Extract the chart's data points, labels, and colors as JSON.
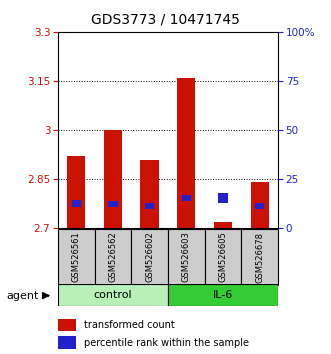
{
  "title": "GDS3773 / 10471745",
  "samples": [
    "GSM526561",
    "GSM526562",
    "GSM526602",
    "GSM526603",
    "GSM526605",
    "GSM526678"
  ],
  "red_values": [
    2.92,
    3.0,
    2.91,
    3.16,
    2.72,
    2.84
  ],
  "blue_values": [
    2.765,
    2.764,
    2.758,
    2.783,
    2.778,
    2.758
  ],
  "blue_heights": [
    0.02,
    0.02,
    0.02,
    0.02,
    0.03,
    0.02
  ],
  "y_min": 2.7,
  "y_max": 3.3,
  "y_ticks": [
    2.7,
    2.85,
    3.0,
    3.15,
    3.3
  ],
  "y_tick_labels": [
    "2.7",
    "2.85",
    "3",
    "3.15",
    "3.3"
  ],
  "y_right_ticks_pct": [
    0,
    25,
    50,
    75,
    100
  ],
  "y_right_labels": [
    "0",
    "25",
    "50",
    "75",
    "100%"
  ],
  "bar_width": 0.5,
  "red_color": "#cc1100",
  "blue_color": "#2222cc",
  "title_fontsize": 10,
  "tick_fontsize": 7.5,
  "axis_color_left": "#cc1100",
  "axis_color_right": "#2222cc",
  "legend_red_label": "transformed count",
  "legend_blue_label": "percentile rank within the sample",
  "agent_label": "agent",
  "gray_bg": "#cccccc",
  "control_color": "#b8f0b8",
  "il6_color": "#33cc33",
  "sample_label_fontsize": 6.0,
  "group_label_fontsize": 8.0,
  "legend_fontsize": 7.0
}
